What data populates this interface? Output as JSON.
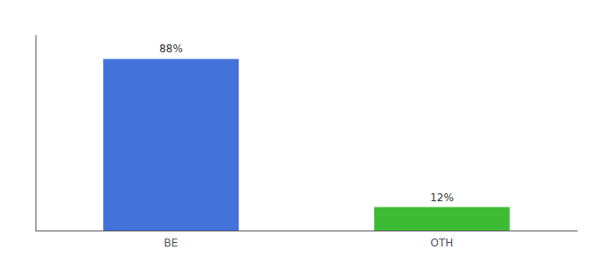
{
  "chart_data": {
    "type": "bar",
    "categories": [
      "BE",
      "OTH"
    ],
    "values": [
      88,
      12
    ],
    "value_labels": [
      "88%",
      "12%"
    ],
    "colors": [
      "#4472db",
      "#3dbb35"
    ],
    "data_labels": true,
    "ylim": [
      0,
      100
    ],
    "yticks": [],
    "tick_labels": "x",
    "grid": false
  }
}
